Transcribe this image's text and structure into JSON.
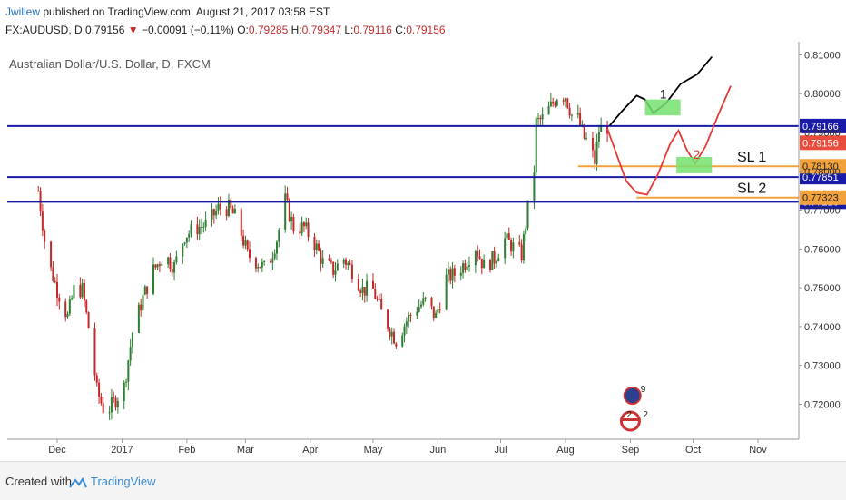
{
  "header": {
    "user": "Jwillew",
    "published_text": "published on TradingView.com, August 21, 2017 03:58 EST",
    "symbol": "FX:AUDUSD, D",
    "last": "0.79156",
    "change": "−0.00091 (−0.11%)",
    "o_label": "O:",
    "o_val": "0.79285",
    "h_label": "H:",
    "h_val": "0.79347",
    "l_label": "L:",
    "l_val": "0.79116",
    "c_label": "C:",
    "c_val": "0.79156"
  },
  "footer": {
    "created": "Created with",
    "brand": "TradingView"
  },
  "colors": {
    "up": "#2e7d32",
    "down": "#c62828",
    "hline": "#1a1aa8",
    "orange": "#f2a23c",
    "red_path": "#e53935",
    "black_path": "#000000",
    "green_box": "#76e26f"
  },
  "chart_data": {
    "type": "candlestick",
    "title": "Australian Dollar/U.S. Dollar, D, FXCM",
    "ylim": [
      0.711,
      0.8115
    ],
    "y_ticks": [
      "0.81000",
      "0.80000",
      "0.79000",
      "0.78000",
      "0.77000",
      "0.76000",
      "0.75000",
      "0.74000",
      "0.73000",
      "0.72000"
    ],
    "x_ticks": [
      "Dec",
      "2017",
      "Feb",
      "Mar",
      "Apr",
      "May",
      "Jun",
      "Jul",
      "Aug",
      "Sep",
      "Oct",
      "Nov"
    ],
    "horizontal_lines": [
      {
        "value": 0.79166,
        "label": "0.79166",
        "color": "#1a1aa8"
      },
      {
        "value": 0.77851,
        "label": "0.77851",
        "color": "#1a1aa8"
      },
      {
        "value": 0.77216,
        "label": "0.77216",
        "color": "#1a1aa8"
      }
    ],
    "levels": [
      {
        "value": 0.7813,
        "label": "0.78130",
        "text": "SL 1",
        "color": "#f2a23c"
      },
      {
        "value": 0.77323,
        "label": "0.77323",
        "text": "SL 2",
        "color": "#f2a23c"
      }
    ],
    "price_tag": {
      "value": 0.79156,
      "label": "0.79156",
      "color": "#e74c3c"
    },
    "scenarios": [
      {
        "label": "1",
        "color": "#000000"
      },
      {
        "label": "2",
        "color": "#e53935"
      }
    ],
    "event_markers": [
      "9",
      "2",
      "2"
    ],
    "anchors": [
      [
        "2016-11-22",
        0.775
      ],
      [
        "2016-11-26",
        0.758
      ],
      [
        "2016-12-01",
        0.7495
      ],
      [
        "2016-12-06",
        0.7425
      ],
      [
        "2016-12-09",
        0.7495
      ],
      [
        "2016-12-13",
        0.7495
      ],
      [
        "2016-12-17",
        0.7365
      ],
      [
        "2016-12-20",
        0.7235
      ],
      [
        "2016-12-24",
        0.7175
      ],
      [
        "2016-12-28",
        0.7205
      ],
      [
        "2017-01-02",
        0.7245
      ],
      [
        "2017-01-06",
        0.7385
      ],
      [
        "2017-01-11",
        0.7475
      ],
      [
        "2017-01-16",
        0.7545
      ],
      [
        "2017-01-21",
        0.7585
      ],
      [
        "2017-01-26",
        0.7555
      ],
      [
        "2017-01-31",
        0.7635
      ],
      [
        "2017-02-06",
        0.7655
      ],
      [
        "2017-02-11",
        0.7665
      ],
      [
        "2017-02-16",
        0.7705
      ],
      [
        "2017-02-21",
        0.7705
      ],
      [
        "2017-02-25",
        0.7675
      ],
      [
        "2017-03-02",
        0.7585
      ],
      [
        "2017-03-07",
        0.7565
      ],
      [
        "2017-03-11",
        0.7545
      ],
      [
        "2017-03-16",
        0.7625
      ],
      [
        "2017-03-20",
        0.7725
      ],
      [
        "2017-03-24",
        0.7655
      ],
      [
        "2017-03-29",
        0.7655
      ],
      [
        "2017-04-03",
        0.7615
      ],
      [
        "2017-04-07",
        0.7565
      ],
      [
        "2017-04-12",
        0.7545
      ],
      [
        "2017-04-17",
        0.7575
      ],
      [
        "2017-04-21",
        0.7545
      ],
      [
        "2017-04-26",
        0.7495
      ],
      [
        "2017-05-01",
        0.7495
      ],
      [
        "2017-05-05",
        0.7435
      ],
      [
        "2017-05-09",
        0.7395
      ],
      [
        "2017-05-12",
        0.7365
      ],
      [
        "2017-05-17",
        0.7415
      ],
      [
        "2017-05-21",
        0.7445
      ],
      [
        "2017-05-26",
        0.7465
      ],
      [
        "2017-05-31",
        0.7425
      ],
      [
        "2017-06-05",
        0.7525
      ],
      [
        "2017-06-09",
        0.7535
      ],
      [
        "2017-06-14",
        0.7565
      ],
      [
        "2017-06-19",
        0.7605
      ],
      [
        "2017-06-23",
        0.7555
      ],
      [
        "2017-06-28",
        0.7575
      ],
      [
        "2017-07-03",
        0.7625
      ],
      [
        "2017-07-07",
        0.7605
      ],
      [
        "2017-07-11",
        0.7585
      ],
      [
        "2017-07-13",
        0.7665
      ],
      [
        "2017-07-15",
        0.7745
      ],
      [
        "2017-07-17",
        0.7805
      ],
      [
        "2017-07-18",
        0.7925
      ],
      [
        "2017-07-21",
        0.7935
      ],
      [
        "2017-07-26",
        0.7975
      ],
      [
        "2017-07-28",
        0.7995
      ],
      [
        "2017-08-01",
        0.7995
      ],
      [
        "2017-08-04",
        0.7945
      ],
      [
        "2017-08-07",
        0.7935
      ],
      [
        "2017-08-10",
        0.7885
      ],
      [
        "2017-08-12",
        0.7875
      ],
      [
        "2017-08-15",
        0.7825
      ],
      [
        "2017-08-17",
        0.7905
      ],
      [
        "2017-08-21",
        0.7915
      ]
    ]
  }
}
